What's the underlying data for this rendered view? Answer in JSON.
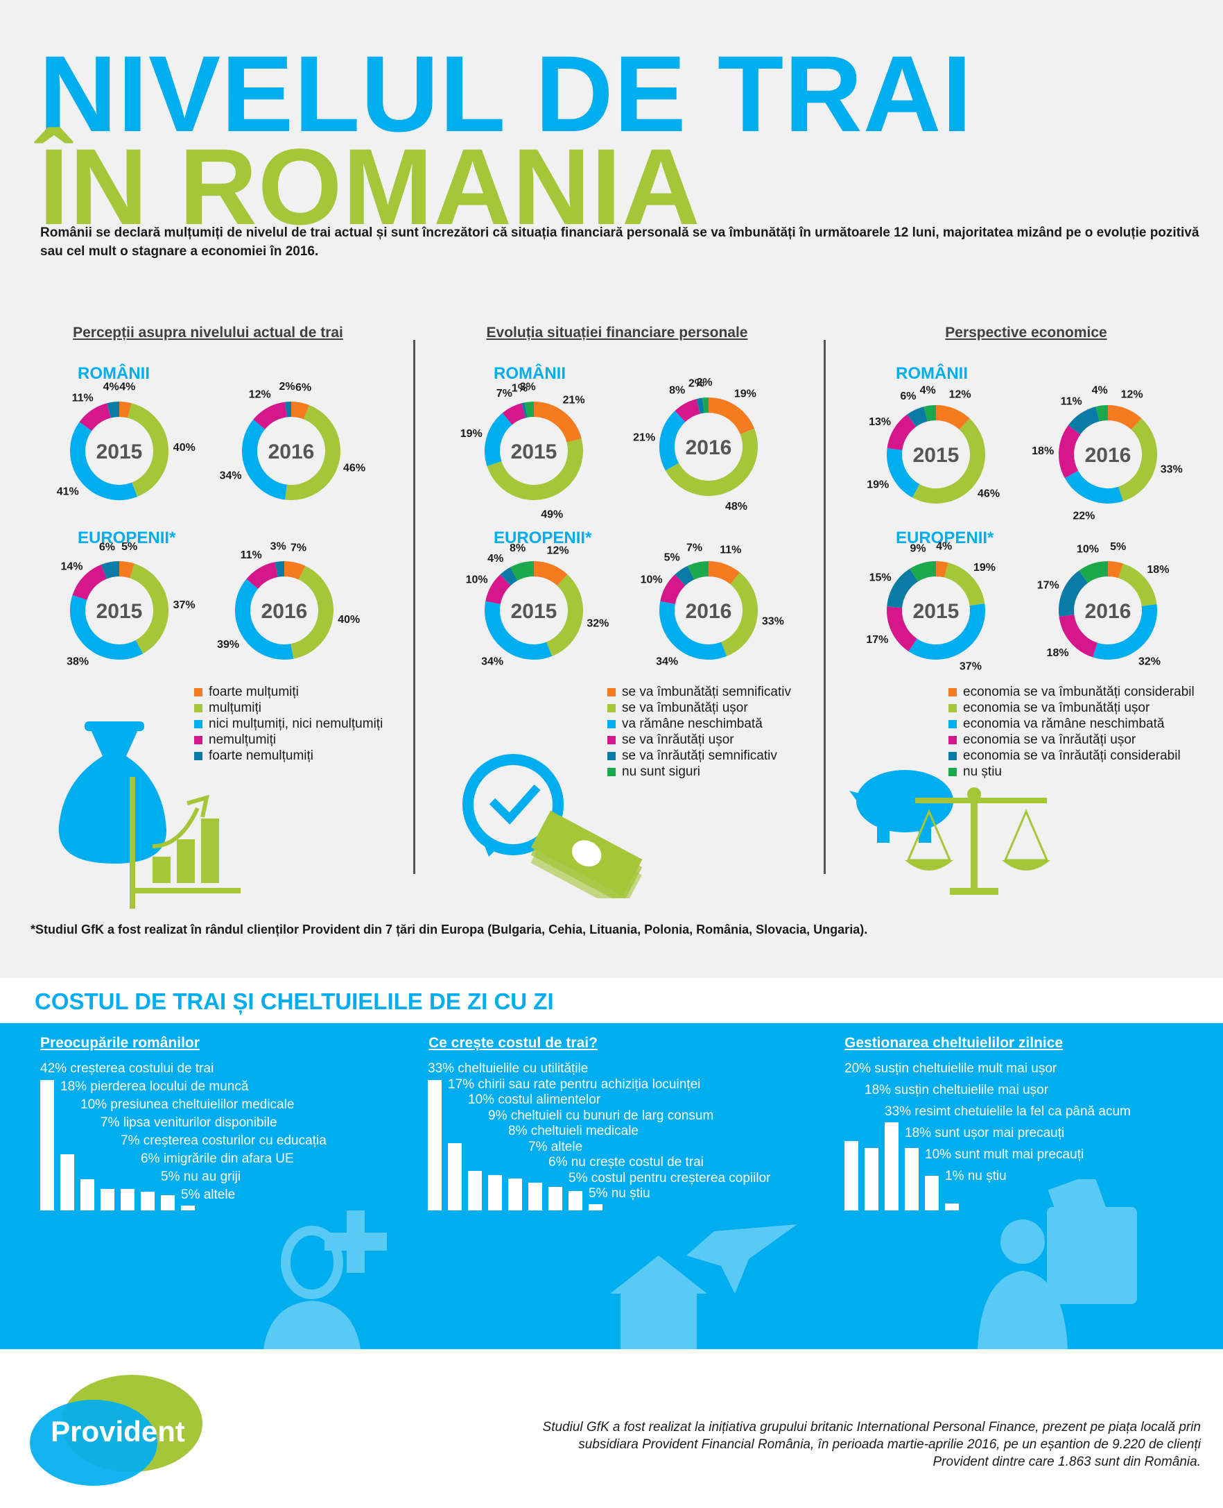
{
  "title": {
    "line1": "NIVELUL DE TRAI",
    "line2": "ÎN ROMANIA"
  },
  "intro": "Românii se declară mulțumiți de nivelul de trai actual și sunt încrezători că situația financiară personală se va îmbunătăți în următoarele 12 luni, majoritatea mizând pe o evoluție pozitivă sau cel mult o stagnare a economiei în 2016.",
  "group_labels": {
    "romanians": "ROMÂNII",
    "europeans": "EUROPENII*"
  },
  "colors": {
    "orange": "#f47b20",
    "green": "#a5c639",
    "cyan": "#00aeef",
    "magenta": "#d6168b",
    "darkblue": "#0a7ba4",
    "teal_green": "#1aa94c",
    "title_blue": "#00aeef",
    "title_green": "#a5c639"
  },
  "sections": [
    {
      "title": "Percepții asupra nivelului actual de trai",
      "legend": [
        "foarte mulțumiți",
        "mulțumiți",
        "nici mulțumiți, nici nemulțumiți",
        "nemulțumiți",
        "foarte nemulțumiți"
      ],
      "icon": "money-bag-growth-chart-icon"
    },
    {
      "title": "Evoluția situației financiare personale",
      "legend": [
        "se va îmbunătăți semnificativ",
        "se va îmbunătăți ușor",
        "va rămâne neschimbată",
        "se va înrăutăți ușor",
        "se va înrăutăți semnificativ",
        "nu sunt siguri"
      ],
      "icon": "clock-money-stack-icon"
    },
    {
      "title": "Perspective economice",
      "legend": [
        "economia se va îmbunătăți considerabil",
        "economia se va îmbunătăți ușor",
        "economia va rămâne neschimbată",
        "economia se va înrăutăți ușor",
        "economia se va înrăutăți considerabil",
        "nu știu"
      ],
      "icon": "piggy-bank-scales-icon"
    }
  ],
  "chart_data": [
    {
      "type": "pie",
      "section": "Percepții asupra nivelului actual de trai",
      "group": "ROMÂNII",
      "center_label": "2015",
      "categories": [
        "foarte mulțumiți",
        "mulțumiți",
        "nici mulțumiți, nici nemulțumiți",
        "nemulțumiți",
        "foarte nemulțumiți"
      ],
      "values": [
        4,
        40,
        41,
        11,
        4
      ]
    },
    {
      "type": "pie",
      "section": "Percepții asupra nivelului actual de trai",
      "group": "ROMÂNII",
      "center_label": "2016",
      "categories": [
        "foarte mulțumiți",
        "mulțumiți",
        "nici mulțumiți, nici nemulțumiți",
        "nemulțumiți",
        "foarte nemulțumiți"
      ],
      "values": [
        6,
        46,
        34,
        12,
        2
      ]
    },
    {
      "type": "pie",
      "section": "Percepții asupra nivelului actual de trai",
      "group": "EUROPENII*",
      "center_label": "2015",
      "categories": [
        "foarte mulțumiți",
        "mulțumiți",
        "nici mulțumiți, nici nemulțumiți",
        "nemulțumiți",
        "foarte nemulțumiți"
      ],
      "values": [
        5,
        37,
        38,
        14,
        6
      ]
    },
    {
      "type": "pie",
      "section": "Percepții asupra nivelului actual de trai",
      "group": "EUROPENII*",
      "center_label": "2016",
      "categories": [
        "foarte mulțumiți",
        "mulțumiți",
        "nici mulțumiți, nici nemulțumiți",
        "nemulțumiți",
        "foarte nemulțumiți"
      ],
      "values": [
        7,
        40,
        39,
        11,
        3
      ]
    },
    {
      "type": "pie",
      "section": "Evoluția situației financiare personale",
      "group": "ROMÂNII",
      "center_label": "2015",
      "categories": [
        "se va îmbunătăți semnificativ",
        "se va îmbunătăți ușor",
        "va rămâne neschimbată",
        "se va înrăutăți ușor",
        "se va înrăutăți semnificativ",
        "nu sunt siguri"
      ],
      "values": [
        21,
        49,
        19,
        7,
        1,
        3
      ]
    },
    {
      "type": "pie",
      "section": "Evoluția situației financiare personale",
      "group": "ROMÂNII",
      "center_label": "2016",
      "categories": [
        "se va îmbunătăți semnificativ",
        "se va îmbunătăți ușor",
        "va rămâne neschimbată",
        "se va înrăutăți ușor",
        "se va înrăutăți semnificativ",
        "nu sunt siguri"
      ],
      "values": [
        19,
        48,
        21,
        8,
        2,
        2
      ]
    },
    {
      "type": "pie",
      "section": "Evoluția situației financiare personale",
      "group": "EUROPENII*",
      "center_label": "2015",
      "categories": [
        "se va îmbunătăți semnificativ",
        "se va îmbunătăți ușor",
        "va rămâne neschimbată",
        "se va înrăutăți ușor",
        "se va înrăutăți semnificativ",
        "nu sunt siguri"
      ],
      "values": [
        12,
        32,
        34,
        10,
        4,
        8
      ]
    },
    {
      "type": "pie",
      "section": "Evoluția situației financiare personale",
      "group": "EUROPENII*",
      "center_label": "2016",
      "categories": [
        "se va îmbunătăți semnificativ",
        "se va îmbunătăți ușor",
        "va rămâne neschimbată",
        "se va înrăutăți ușor",
        "se va înrăutăți semnificativ",
        "nu sunt siguri"
      ],
      "values": [
        11,
        33,
        34,
        10,
        5,
        7
      ]
    },
    {
      "type": "pie",
      "section": "Perspective economice",
      "group": "ROMÂNII",
      "center_label": "2015",
      "categories": [
        "economia se va îmbunătăți considerabil",
        "economia se va îmbunătăți ușor",
        "economia va rămâne neschimbată",
        "economia se va înrăutăți ușor",
        "economia se va înrăutăți considerabil",
        "nu știu"
      ],
      "values": [
        12,
        46,
        19,
        13,
        6,
        4
      ]
    },
    {
      "type": "pie",
      "section": "Perspective economice",
      "group": "ROMÂNII",
      "center_label": "2016",
      "categories": [
        "economia se va îmbunătăți considerabil",
        "economia se va îmbunătăți ușor",
        "economia va rămâne neschimbată",
        "economia se va înrăutăți ușor",
        "economia se va înrăutăți considerabil",
        "nu știu"
      ],
      "values": [
        12,
        33,
        22,
        18,
        11,
        4
      ]
    },
    {
      "type": "pie",
      "section": "Perspective economice",
      "group": "EUROPENII*",
      "center_label": "2015",
      "categories": [
        "economia se va îmbunătăți considerabil",
        "economia se va îmbunătăți ușor",
        "economia va rămâne neschimbată",
        "economia se va înrăutăți ușor",
        "economia se va înrăutăți considerabil",
        "nu știu"
      ],
      "values": [
        4,
        19,
        37,
        17,
        15,
        9
      ]
    },
    {
      "type": "pie",
      "section": "Perspective economice",
      "group": "EUROPENII*",
      "center_label": "2016",
      "categories": [
        "economia se va îmbunătăți considerabil",
        "economia se va îmbunătăți ușor",
        "economia va rămâne neschimbată",
        "economia se va înrăutăți ușor",
        "economia se va înrăutăți considerabil",
        "nu știu"
      ],
      "values": [
        5,
        18,
        32,
        18,
        17,
        10
      ]
    },
    {
      "type": "bar",
      "section": "Preocupările românilor",
      "items": [
        {
          "value": 42,
          "label": "creșterea costului de trai"
        },
        {
          "value": 18,
          "label": "pierderea locului de muncă"
        },
        {
          "value": 10,
          "label": "presiunea cheltuielilor medicale"
        },
        {
          "value": 7,
          "label": "lipsa veniturilor disponibile"
        },
        {
          "value": 7,
          "label": "creșterea costurilor cu educația"
        },
        {
          "value": 6,
          "label": "imigrările din afara UE"
        },
        {
          "value": 5,
          "label": "nu au griji"
        },
        {
          "value": 5,
          "label": "altele"
        }
      ]
    },
    {
      "type": "bar",
      "section": "Ce crește costul de trai?",
      "items": [
        {
          "value": 33,
          "label": "cheltuielile cu utilitățile"
        },
        {
          "value": 17,
          "label": "chirii sau rate pentru achiziția locuinței"
        },
        {
          "value": 10,
          "label": "costul alimentelor"
        },
        {
          "value": 9,
          "label": "cheltuieli cu bunuri de larg consum"
        },
        {
          "value": 8,
          "label": "cheltuieli medicale"
        },
        {
          "value": 7,
          "label": "altele"
        },
        {
          "value": 6,
          "label": "nu crește costul de trai"
        },
        {
          "value": 5,
          "label": "costul pentru creșterea copiilor"
        },
        {
          "value": 5,
          "label": "nu știu"
        }
      ]
    },
    {
      "type": "bar",
      "section": "Gestionarea cheltuielilor zilnice",
      "items": [
        {
          "value": 20,
          "label": "susțin cheltuielile mult mai ușor"
        },
        {
          "value": 18,
          "label": "susțin cheltuielile mai ușor"
        },
        {
          "value": 33,
          "label": "resimt chetuielile la fel ca până acum"
        },
        {
          "value": 18,
          "label": "sunt ușor mai precauți"
        },
        {
          "value": 10,
          "label": "sunt mult mai precauți"
        },
        {
          "value": 1,
          "label": "nu știu"
        }
      ]
    }
  ],
  "footnote": "*Studiul GfK a fost realizat în rândul clienților Provident din 7 țări din Europa (Bulgaria, Cehia, Lituania, Polonia, România, Slovacia, Ungaria).",
  "cost_section": {
    "heading": "COSTUL DE TRAI ȘI CHELTUIELILE DE ZI CU ZI",
    "titles": [
      "Preocupările românilor",
      "Ce crește costul de trai?",
      "Gestionarea cheltuielilor zilnice"
    ],
    "icons": [
      "doctor-medical-cross-icon",
      "house-airplane-icon",
      "person-reading-wallet-icon"
    ]
  },
  "logo": {
    "text": "Provident"
  },
  "bottom_note": "Studiul GfK a fost realizat la inițiativa grupului britanic International Personal Finance, prezent pe piața locală prin subsidiara Provident Financial România, în perioada martie-aprilie 2016, pe un eșantion de 9.220 de clienți Provident dintre care 1.863 sunt din România."
}
